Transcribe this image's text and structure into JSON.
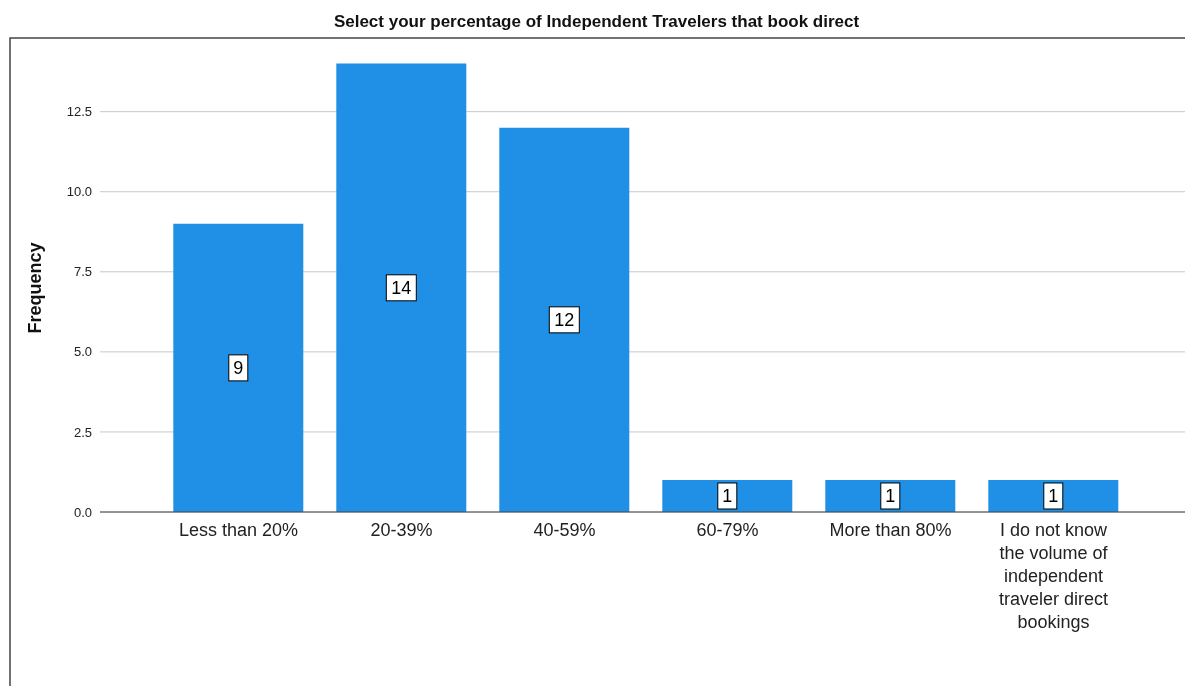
{
  "chart_data": {
    "type": "bar",
    "title": "Select your percentage of Independent Travelers that book direct",
    "ylabel": "Frequency",
    "categories": [
      "Less than 20%",
      "20-39%",
      "40-59%",
      "60-79%",
      "More than 80%",
      "I do not know the volume of independent traveler direct bookings"
    ],
    "values": [
      9,
      14,
      12,
      1,
      1,
      1
    ],
    "color": "#1f90e6",
    "data_labels": true,
    "grid": "y",
    "legend": false,
    "ylim": [
      0,
      14.8
    ],
    "yticks": [
      {
        "value": 0,
        "label": "0.0"
      },
      {
        "value": 2.5,
        "label": "2.5"
      },
      {
        "value": 5,
        "label": "5.0"
      },
      {
        "value": 7.5,
        "label": "7.5"
      },
      {
        "value": 10,
        "label": "10.0"
      },
      {
        "value": 12.5,
        "label": "12.5"
      }
    ]
  }
}
